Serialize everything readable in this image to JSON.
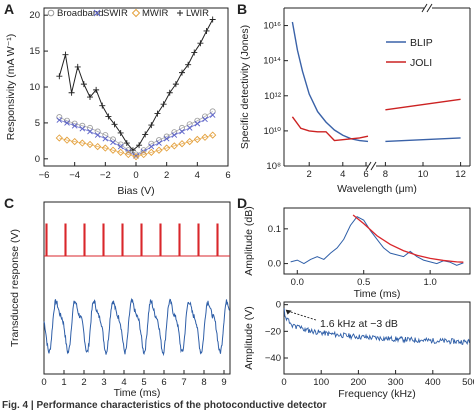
{
  "colors": {
    "axis": "#222222",
    "broadband": "#9a9a9a",
    "swir": "#5b62c9",
    "mwir": "#e4a13d",
    "lwir": "#222222",
    "blip": "#3a62a8",
    "joli": "#cc2222",
    "trace_red": "#d9262b",
    "trace_blue": "#2f5fa8",
    "fit_red": "#d9262b"
  },
  "caption": "Fig. 4 | Performance characteristics of the photoconductive detector",
  "chart_data": [
    {
      "panel": "A",
      "type": "scatter",
      "xlabel": "Bias (V)",
      "ylabel": "Responsivity (mA W⁻¹)",
      "xlim": [
        -6,
        6
      ],
      "ylim": [
        -1,
        21
      ],
      "xticks": [
        "−6",
        "−4",
        "−2",
        "0",
        "2",
        "4",
        "6"
      ],
      "yticks": [
        "0",
        "5",
        "10",
        "15",
        "20"
      ],
      "legend_position": "top",
      "series": [
        {
          "name": "Broadband",
          "marker": "circle",
          "x": [
            -5.0,
            -4.5,
            -4.0,
            -3.5,
            -3.0,
            -2.5,
            -2.0,
            -1.5,
            -1.0,
            -0.5,
            0.0,
            0.5,
            1.0,
            1.5,
            2.0,
            2.5,
            3.0,
            3.5,
            4.0,
            4.5,
            5.0
          ],
          "y": [
            5.8,
            5.3,
            4.9,
            4.6,
            4.3,
            3.8,
            3.3,
            2.7,
            2.0,
            1.2,
            0.6,
            1.2,
            2.1,
            2.6,
            3.1,
            3.7,
            4.3,
            4.8,
            5.3,
            5.9,
            6.6
          ]
        },
        {
          "name": "SWIR",
          "marker": "x",
          "x": [
            -5.0,
            -4.5,
            -4.0,
            -3.5,
            -3.0,
            -2.5,
            -2.0,
            -1.5,
            -1.0,
            -0.5,
            0.0,
            0.5,
            1.0,
            1.5,
            2.0,
            2.5,
            3.0,
            3.5,
            4.0,
            4.5,
            5.0
          ],
          "y": [
            5.4,
            5.0,
            4.6,
            4.2,
            3.8,
            3.3,
            2.8,
            2.3,
            1.7,
            1.0,
            0.4,
            1.0,
            1.7,
            2.2,
            2.8,
            3.3,
            3.8,
            4.3,
            4.9,
            5.5,
            6.1
          ]
        },
        {
          "name": "MWIR",
          "marker": "diamond",
          "x": [
            -5.0,
            -4.5,
            -4.0,
            -3.5,
            -3.0,
            -2.5,
            -2.0,
            -1.5,
            -1.0,
            -0.5,
            0.0,
            0.5,
            1.0,
            1.5,
            2.0,
            2.5,
            3.0,
            3.5,
            4.0,
            4.5,
            5.0
          ],
          "y": [
            2.9,
            2.6,
            2.4,
            2.2,
            2.0,
            1.7,
            1.5,
            1.2,
            0.9,
            0.6,
            0.3,
            0.6,
            0.9,
            1.2,
            1.5,
            1.8,
            2.1,
            2.4,
            2.7,
            3.0,
            3.3
          ]
        },
        {
          "name": "LWIR",
          "marker": "plus",
          "x": [
            -5.0,
            -4.6,
            -4.2,
            -3.8,
            -3.4,
            -3.0,
            -2.6,
            -2.2,
            -1.8,
            -1.4,
            -1.0,
            -0.6,
            -0.2,
            0.2,
            0.6,
            1.0,
            1.4,
            1.8,
            2.2,
            2.6,
            3.0,
            3.4,
            3.8,
            4.2,
            4.6,
            5.0
          ],
          "y": [
            11.5,
            14.5,
            9.2,
            12.8,
            10.4,
            8.6,
            9.6,
            7.4,
            5.9,
            4.8,
            3.6,
            2.2,
            1.2,
            1.9,
            3.4,
            4.7,
            6.3,
            7.6,
            9.2,
            10.4,
            12.0,
            13.1,
            14.8,
            16.1,
            17.8,
            19.4
          ]
        }
      ]
    },
    {
      "panel": "B",
      "type": "line",
      "xlabel": "Wavelength (μm)",
      "ylabel": "Specific detectivity (Jones)",
      "yscale": "log",
      "xticks": [
        "2",
        "4",
        "6",
        "8",
        "10",
        "12"
      ],
      "yticks": [
        "10⁸",
        "10¹⁰",
        "10¹²",
        "10¹⁴",
        "10¹⁶"
      ],
      "ylim_exp": [
        8,
        17
      ],
      "legend_position": "top-right",
      "series": [
        {
          "name": "BLIP",
          "x": [
            1.0,
            1.3,
            1.6,
            2.0,
            2.5,
            3.0,
            3.5,
            4.0,
            4.5,
            5.0,
            5.5,
            8.0,
            9.0,
            10.0,
            11.0,
            12.0
          ],
          "y_exp": [
            16.2,
            14.6,
            13.4,
            12.1,
            11.1,
            10.5,
            10.05,
            9.75,
            9.55,
            9.45,
            9.4,
            9.4,
            9.45,
            9.5,
            9.55,
            9.6
          ]
        },
        {
          "name": "JOLI",
          "x": [
            1.0,
            1.5,
            2.0,
            2.5,
            3.0,
            3.5,
            4.0,
            4.5,
            5.0,
            5.5,
            8.0,
            9.0,
            10.0,
            11.0,
            12.0
          ],
          "y_exp": [
            10.8,
            10.15,
            10.0,
            9.95,
            9.95,
            9.45,
            9.5,
            9.55,
            9.6,
            9.7,
            11.2,
            11.35,
            11.5,
            11.65,
            11.8
          ]
        }
      ]
    },
    {
      "panel": "C",
      "type": "line",
      "xlabel": "Time (ms)",
      "ylabel": "Transduced response (V)",
      "xlim": [
        0,
        9.3
      ],
      "xticks": [
        "0",
        "1",
        "2",
        "3",
        "4",
        "5",
        "6",
        "7",
        "8",
        "9"
      ],
      "series": [
        {
          "name": "",
          "kind": "pulse-train",
          "period_ms": 0.95,
          "first_ms": 0.1
        },
        {
          "name": "",
          "kind": "oscillation",
          "period_ms": 0.95,
          "phase_ms": 0.45
        }
      ]
    },
    {
      "panel": "D-top",
      "type": "line",
      "xlabel": "Time (ms)",
      "ylabel": "Amplitude (dB)",
      "xlim": [
        -0.1,
        1.3
      ],
      "ylim": [
        -0.03,
        0.16
      ],
      "xticks": [
        "0.0",
        "0.5",
        "1.0"
      ],
      "yticks": [
        "0.0",
        "0.1"
      ],
      "x": [
        -0.05,
        0.0,
        0.05,
        0.1,
        0.15,
        0.2,
        0.25,
        0.3,
        0.35,
        0.4,
        0.45,
        0.5,
        0.55,
        0.6,
        0.65,
        0.7,
        0.75,
        0.8,
        0.85,
        0.9,
        0.95,
        1.0,
        1.05,
        1.1,
        1.15,
        1.2,
        1.25
      ],
      "y": [
        0.005,
        0.01,
        0.0,
        0.012,
        0.02,
        0.012,
        0.03,
        0.045,
        0.07,
        0.11,
        0.135,
        0.125,
        0.095,
        0.07,
        0.045,
        0.03,
        0.025,
        0.02,
        0.035,
        0.02,
        0.01,
        0.005,
        0.0,
        0.008,
        0.004,
        -0.005,
        0.002
      ],
      "fit": {
        "x": [
          0.42,
          0.5,
          0.6,
          0.7,
          0.8,
          0.9,
          1.0,
          1.1,
          1.2,
          1.25
        ],
        "y": [
          0.14,
          0.115,
          0.08,
          0.055,
          0.037,
          0.024,
          0.015,
          0.009,
          0.005,
          0.004
        ]
      }
    },
    {
      "panel": "D-bottom",
      "type": "line",
      "xlabel": "Frequency (kHz)",
      "ylabel": "Amplitude (V)",
      "xlim": [
        0,
        500
      ],
      "ylim": [
        -52,
        2
      ],
      "xticks": [
        "0",
        "100",
        "200",
        "300",
        "400",
        "500"
      ],
      "yticks": [
        "0",
        "−20",
        "−40"
      ],
      "annotation": "1.6 kHz at −3 dB"
    }
  ]
}
